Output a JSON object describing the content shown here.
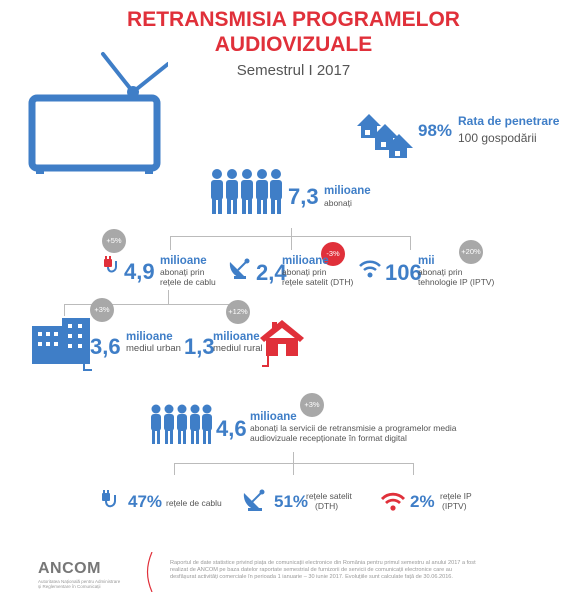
{
  "header": {
    "title_line1": "RETRANSMISIA PROGRAMELOR",
    "title_line2": "AUDIOVIZUALE",
    "subtitle": "Semestrul I 2017"
  },
  "penetration": {
    "value": "98%",
    "label": "Rata de penetrare",
    "sublabel": "100 gospodării"
  },
  "subscribers": {
    "value": "7,3",
    "unit": "milioane",
    "desc": "abonați"
  },
  "cable": {
    "badge": "+5%",
    "value": "4,9",
    "unit": "milioane",
    "desc1": "abonați prin",
    "desc2": "rețele de cablu"
  },
  "dth": {
    "badge": "-3%",
    "value": "2,4",
    "unit": "milioane",
    "desc1": "abonați prin",
    "desc2": "rețele satelit (DTH)"
  },
  "iptv": {
    "badge": "+20%",
    "value": "106",
    "unit": "mii",
    "desc1": "abonați prin",
    "desc2": "tehnologie IP (IPTV)"
  },
  "urban": {
    "badge": "+3%",
    "value": "3,6",
    "unit": "milioane",
    "desc": "mediul urban"
  },
  "rural": {
    "badge": "+12%",
    "value": "1,3",
    "unit": "milioane",
    "desc": "mediul rural"
  },
  "digital": {
    "badge": "+3%",
    "value": "4,6",
    "unit": "milioane",
    "desc1": "abonați la servicii de retransmisie a programelor media",
    "desc2": "audiovizuale recepționate în format digital"
  },
  "digital_split": [
    {
      "value": "47%",
      "label1": "rețele de cablu",
      "label2": ""
    },
    {
      "value": "51%",
      "label1": "rețele satelit",
      "label2": "(DTH)"
    },
    {
      "value": "2%",
      "label1": "rețele IP",
      "label2": "(IPTV)"
    }
  ],
  "footer": {
    "logo": "ANCOM",
    "logo_sub1": "Autoritatea Națională pentru Administrare",
    "logo_sub2": "și Reglementare în Comunicații",
    "text1": "Raportul de date statistice privind piața de comunicații electronice din România pentru primul semestru al anului 2017 a fost",
    "text2": "realizat de ANCOM pe baza datelor raportate semestrial de furnizorii de servicii de comunicații electronice care au",
    "text3": "desfășurat activități comerciale în perioada 1 ianuarie – 30 iunie 2017. Evoluțiile sunt calculate față de 30.06.2016."
  },
  "colors": {
    "blue": "#3f7ec7",
    "red": "#e0303a",
    "grey": "#a8a8a8"
  },
  "icons": [
    "tv-icon",
    "houses-icon",
    "people-group-icon",
    "plug-icon",
    "satellite-dish-icon",
    "wifi-icon",
    "building-icon",
    "house-icon"
  ]
}
